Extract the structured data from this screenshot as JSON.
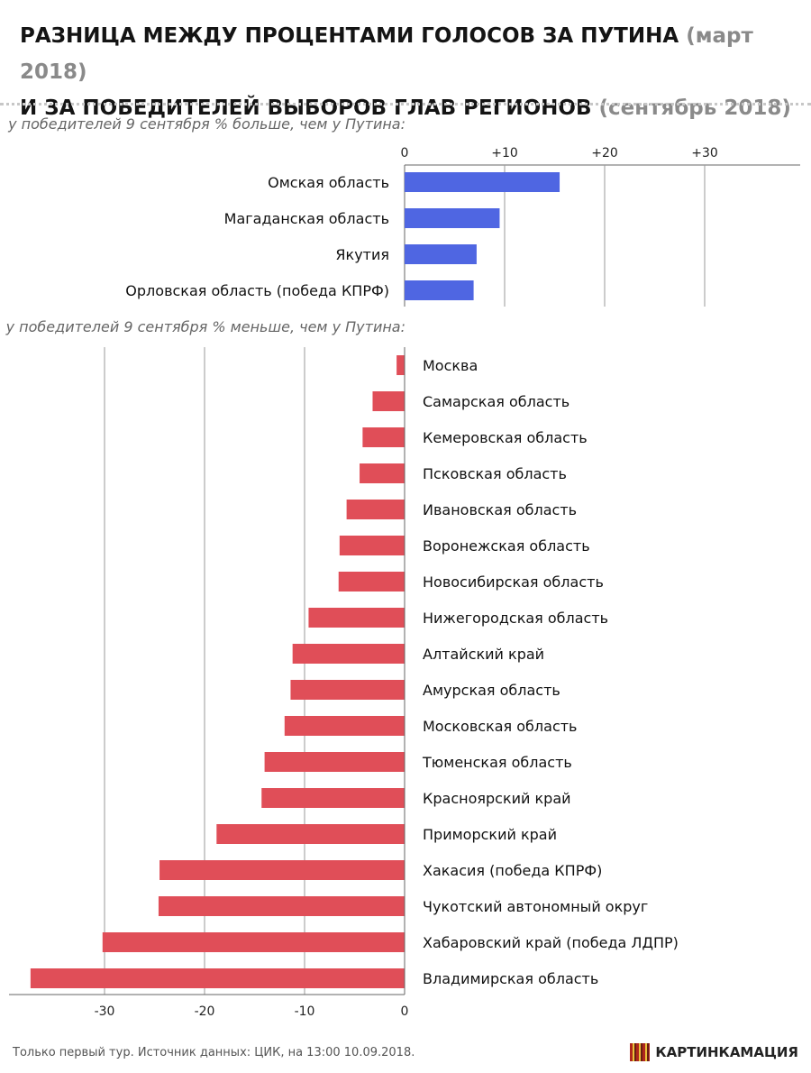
{
  "title": {
    "line1_main": "РАЗНИЦА МЕЖДУ ПРОЦЕНТАМИ ГОЛОСОВ ЗА ПУТИНА",
    "line1_muted": "(март 2018)",
    "line2_main": "И ЗА ПОБЕДИТЕЛЕЙ ВЫБОРОВ ГЛАВ РЕГИОНОВ",
    "line2_muted": "(сентябрь 2018)"
  },
  "footer": {
    "note": "Только первый тур. Источник данных: ЦИК, на 13:00 10.09.2018.",
    "brand": "КАРТИНКАМАЦИЯ"
  },
  "colors": {
    "positive": "#4f66e2",
    "negative": "#e04e58",
    "grid": "#9a9a9a"
  },
  "chart_data": [
    {
      "type": "bar",
      "orientation": "horizontal",
      "subtitle": "у победителей 9 сентября % больше, чем у Путина:",
      "categories": [
        "Омская область",
        "Магаданская область",
        "Якутия",
        "Орловская область (победа КПРФ)"
      ],
      "values": [
        15.5,
        9.5,
        7.2,
        6.9
      ],
      "xlim": [
        0,
        40
      ],
      "ticks": [
        {
          "value": 0,
          "label": "0"
        },
        {
          "value": 10,
          "label": "+10"
        },
        {
          "value": 20,
          "label": "+20"
        },
        {
          "value": 30,
          "label": "+30"
        }
      ],
      "tick_position": "top",
      "grid": true
    },
    {
      "type": "bar",
      "orientation": "horizontal",
      "subtitle": "у победителей 9 сентября % меньше, чем у Путина:",
      "categories": [
        "Москва",
        "Самарская область",
        "Кемеровская область",
        "Псковская область",
        "Ивановская область",
        "Воронежская область",
        "Новосибирская область",
        "Нижегородская область",
        "Алтайский край",
        "Амурская область",
        "Московская область",
        "Тюменская область",
        "Красноярский край",
        "Приморский край",
        "Хакасия (победа КПРФ)",
        "Чукотский автономный округ",
        "Хабаровский край (победа ЛДПР)",
        "Владимирская область"
      ],
      "values": [
        -0.8,
        -3.2,
        -4.2,
        -4.5,
        -5.8,
        -6.5,
        -6.6,
        -9.6,
        -11.2,
        -11.4,
        -12.0,
        -14.0,
        -14.3,
        -18.8,
        -24.5,
        -24.6,
        -30.2,
        -37.4
      ],
      "xlim": [
        -40,
        0
      ],
      "ticks": [
        {
          "value": -30,
          "label": "-30"
        },
        {
          "value": -20,
          "label": "-20"
        },
        {
          "value": -10,
          "label": "-10"
        },
        {
          "value": 0,
          "label": "0"
        }
      ],
      "tick_position": "bottom",
      "grid": true
    }
  ]
}
